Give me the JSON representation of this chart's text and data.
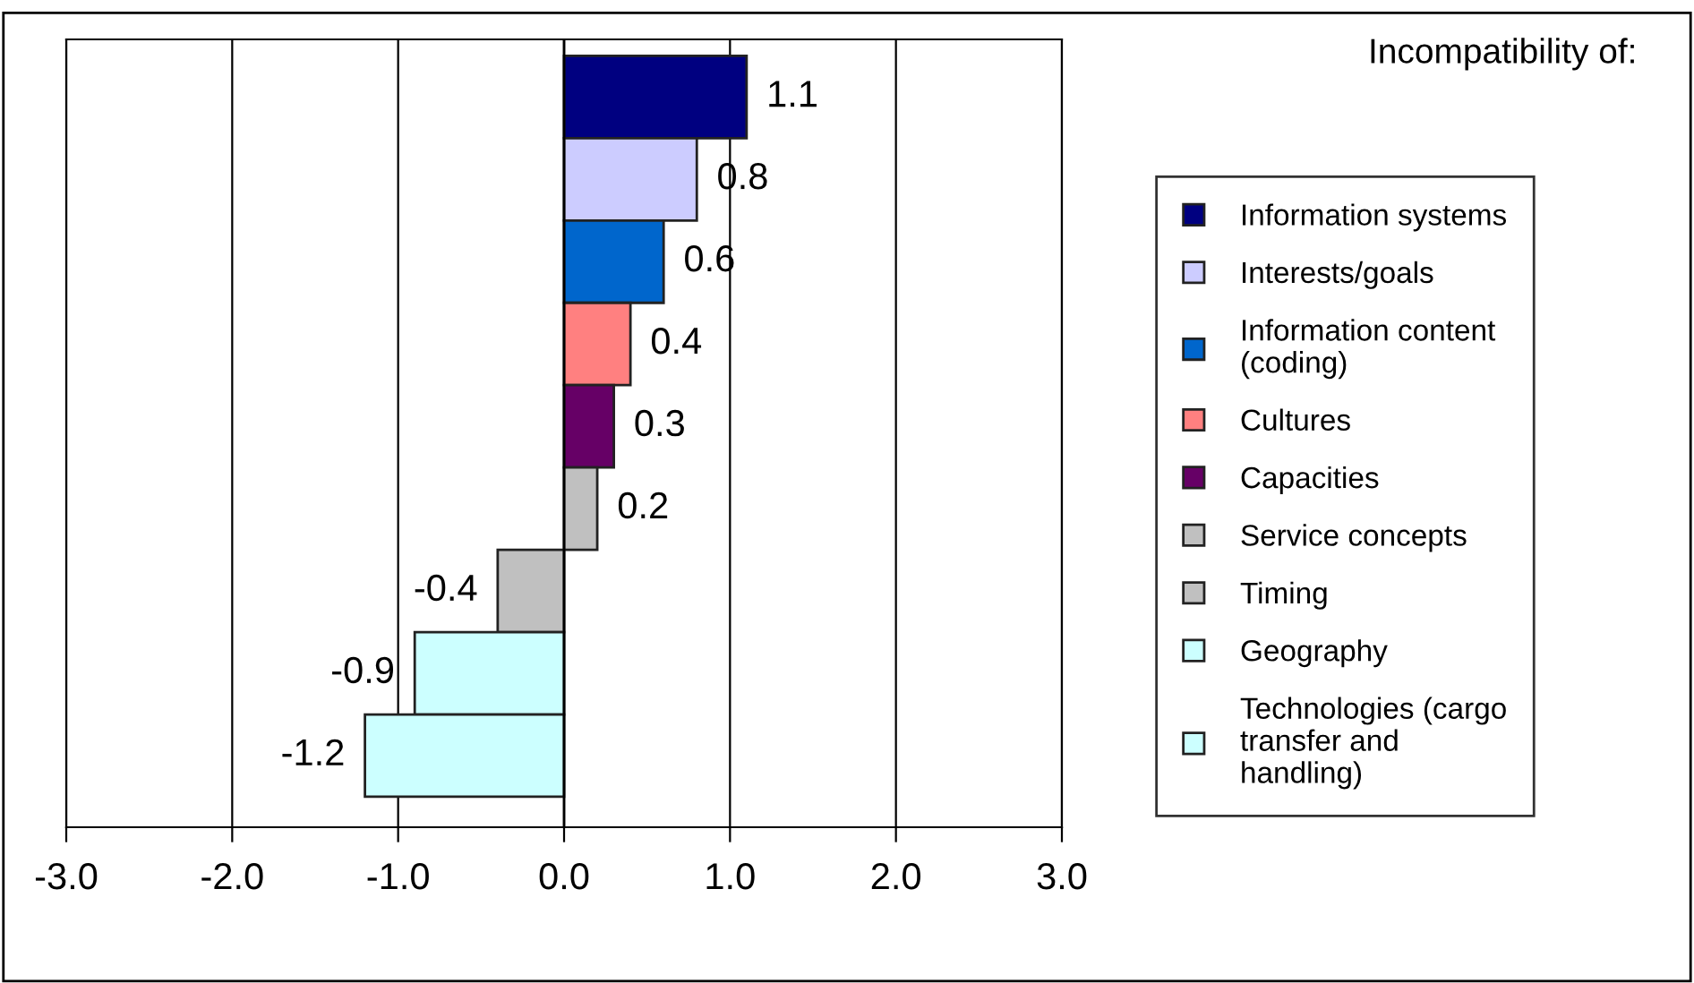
{
  "chart_data": {
    "type": "bar",
    "orientation": "horizontal",
    "legend_title": "Incompatibility of:",
    "categories": [
      null,
      null,
      null,
      null,
      null,
      null,
      null,
      null,
      null
    ],
    "series": [
      {
        "name": "Information systems",
        "color": "#000080",
        "values": [
          1.1,
          null,
          null,
          null,
          null,
          null,
          null,
          null,
          null
        ]
      },
      {
        "name": "Interests/goals",
        "color": "#ccccff",
        "values": [
          null,
          0.8,
          null,
          null,
          null,
          null,
          null,
          null,
          null
        ]
      },
      {
        "name": "Information content (coding)",
        "color": "#0066cc",
        "values": [
          null,
          null,
          0.6,
          null,
          null,
          null,
          null,
          null,
          null
        ]
      },
      {
        "name": "Cultures",
        "color": "#ff8080",
        "values": [
          null,
          null,
          null,
          0.4,
          null,
          null,
          null,
          null,
          null
        ]
      },
      {
        "name": "Capacities",
        "color": "#660066",
        "values": [
          null,
          null,
          null,
          null,
          0.3,
          null,
          null,
          null,
          null
        ]
      },
      {
        "name": "Service concepts",
        "color": "#c0c0c0",
        "values": [
          null,
          null,
          null,
          null,
          null,
          0.2,
          null,
          null,
          null
        ]
      },
      {
        "name": "Timing",
        "color": "#c0c0c0",
        "values": [
          null,
          null,
          null,
          null,
          null,
          null,
          -0.4,
          null,
          null
        ]
      },
      {
        "name": "Geography",
        "color": "#ccffff",
        "values": [
          null,
          null,
          null,
          null,
          null,
          null,
          null,
          -0.9,
          null
        ]
      },
      {
        "name": "Technologies (cargo transfer and handling)",
        "color": "#ccffff",
        "values": [
          null,
          null,
          null,
          null,
          null,
          null,
          null,
          null,
          -1.2
        ]
      }
    ],
    "xlim": [
      -3.0,
      3.0
    ],
    "xticks": [
      {
        "value": -3,
        "label": "-3.0"
      },
      {
        "value": -2,
        "label": "-2.0"
      },
      {
        "value": -1,
        "label": "-1.0"
      },
      {
        "value": 0,
        "label": "0.0"
      },
      {
        "value": 1,
        "label": "1.0"
      },
      {
        "value": 2,
        "label": "2.0"
      },
      {
        "value": 3,
        "label": "3.0"
      }
    ],
    "grid": "x",
    "legend": "right",
    "data_labels": true,
    "tick_labels": "x"
  }
}
